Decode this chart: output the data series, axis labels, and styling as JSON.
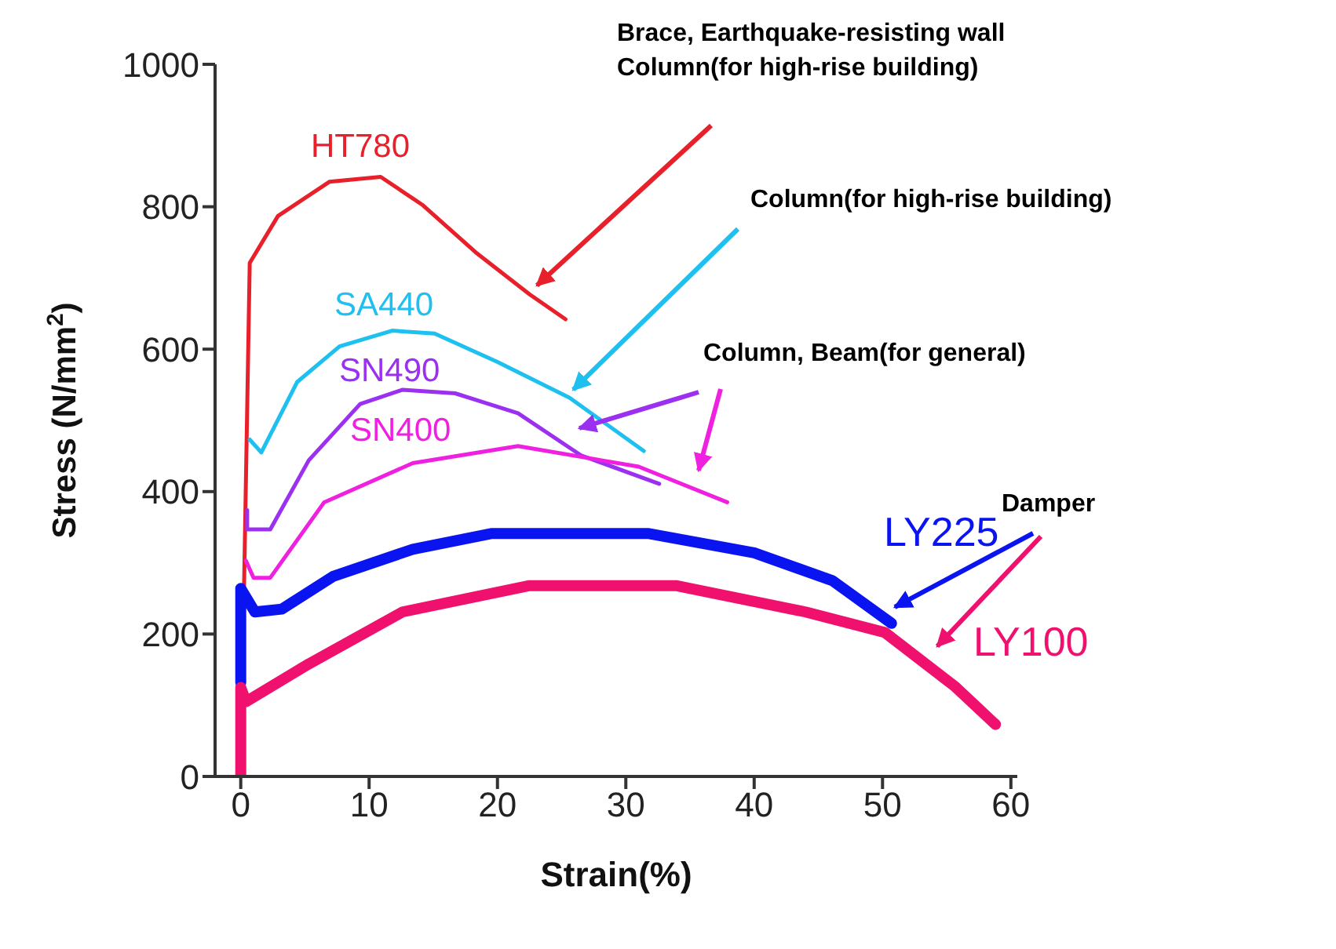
{
  "chart_data": {
    "type": "line",
    "xlabel": "Strain(%)",
    "ylabel": "Stress (N/mm$^{2}$)",
    "xlim": [
      -2,
      60.5
    ],
    "ylim": [
      0,
      1000
    ],
    "xticks": [
      0,
      10,
      20,
      30,
      40,
      50,
      60
    ],
    "yticks": [
      0,
      200,
      400,
      600,
      800,
      1000
    ],
    "grid": false,
    "legend": false,
    "marker": "none",
    "line_style": "solid",
    "series": [
      {
        "name": "HT780",
        "color": "#e8202a",
        "x": [
          0,
          0.7,
          2.9,
          6.9,
          10.9,
          14.2,
          18.3,
          22.5,
          25.3
        ],
        "values": [
          0,
          721,
          787,
          835,
          842,
          802,
          736,
          677,
          642
        ]
      },
      {
        "name": "SA440",
        "color": "#1ec0f0",
        "x": [
          0.7,
          1.6,
          4.4,
          7.7,
          11.8,
          15.1,
          20,
          25.6,
          31.4
        ],
        "values": [
          473,
          455,
          554,
          604,
          626,
          622,
          582,
          532,
          457
        ]
      },
      {
        "name": "SN490",
        "color": "#9b30f0",
        "x": [
          0.5,
          0.5,
          2.3,
          5.3,
          9.3,
          12.6,
          16.7,
          21.6,
          26.5,
          32.6
        ],
        "values": [
          374,
          347,
          347,
          444,
          523,
          543,
          538,
          510,
          451,
          411
        ]
      },
      {
        "name": "SN400",
        "color": "#f020e0",
        "x": [
          0.4,
          1,
          2.3,
          6.5,
          13.4,
          21.6,
          31,
          37.9
        ],
        "values": [
          303,
          279,
          279,
          385,
          440,
          464,
          435,
          385
        ]
      },
      {
        "name": "LY225",
        "color": "#0a14f0",
        "x": [
          0,
          0,
          1.1,
          3.2,
          7.2,
          13.4,
          19.5,
          31.8,
          40,
          46.1,
          50.7
        ],
        "values": [
          132,
          264,
          231,
          235,
          281,
          319,
          341,
          341,
          314,
          275,
          215
        ]
      },
      {
        "name": "LY100",
        "color": "#f0106e",
        "x": [
          0,
          0,
          0.4,
          5.3,
          12.6,
          22.5,
          33.9,
          44,
          50.2,
          55.6,
          58.8
        ],
        "values": [
          0,
          125,
          105,
          158,
          231,
          268,
          268,
          231,
          202,
          127,
          73
        ]
      }
    ],
    "annotations": [
      "Brace, Earthquake-resisting wall\nColumn(for high-rise building)",
      {
        "text": "Column(for high-rise building)",
        "x": 25.9,
        "y": 543
      },
      "Column, Beam(for general)",
      "Damper"
    ]
  }
}
